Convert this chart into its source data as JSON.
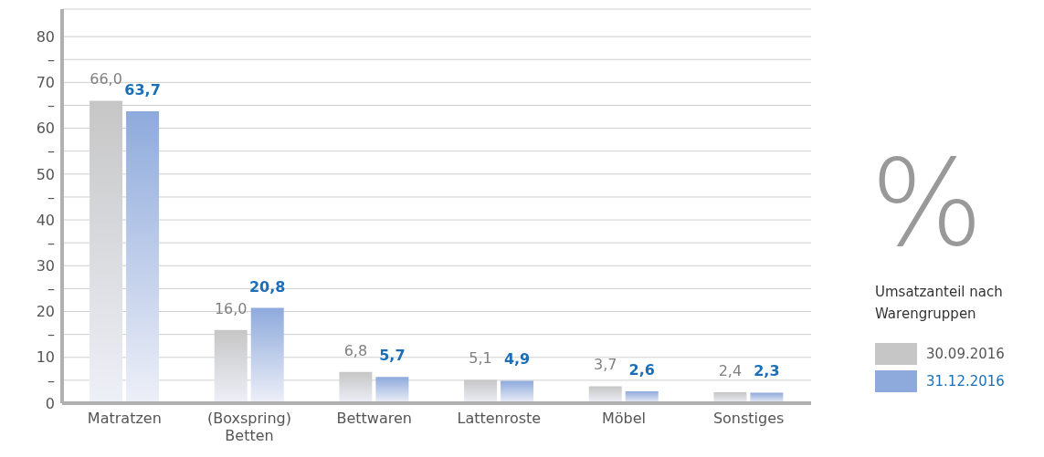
{
  "chart_data": {
    "type": "bar",
    "ylabel": "%",
    "legend_title": "Umsatzanteil nach Warengruppen",
    "categories": [
      "Matratzen",
      "(Boxspring) Betten",
      "Bettwaren",
      "Lattenroste",
      "Möbel",
      "Sonstiges"
    ],
    "series": [
      {
        "name": "30.09.2016",
        "color": "#c6c6c6",
        "values": [
          66.0,
          16.0,
          6.8,
          5.1,
          3.7,
          2.4
        ],
        "value_labels": [
          "66,0",
          "16,0",
          "6,8",
          "5,1",
          "3,7",
          "2,4"
        ]
      },
      {
        "name": "31.12.2016",
        "color": "#8eaadc",
        "values": [
          63.7,
          20.8,
          5.7,
          4.9,
          2.6,
          2.3
        ],
        "value_labels": [
          "63,7",
          "20,8",
          "5,7",
          "4,9",
          "2,6",
          "2,3"
        ]
      }
    ],
    "ylim": [
      0,
      86
    ],
    "yticks": [
      0,
      {
        "value": 5,
        "label": "–"
      },
      10,
      {
        "value": 15,
        "label": "–"
      },
      20,
      {
        "value": 25,
        "label": "–"
      },
      30,
      {
        "value": 35,
        "label": "–"
      },
      40,
      {
        "value": 45,
        "label": "–"
      },
      50,
      {
        "value": 55,
        "label": "–"
      },
      60,
      {
        "value": 65,
        "label": "–"
      },
      70,
      {
        "value": 75,
        "label": "–"
      },
      80
    ],
    "grid": "y",
    "legend": "right"
  }
}
